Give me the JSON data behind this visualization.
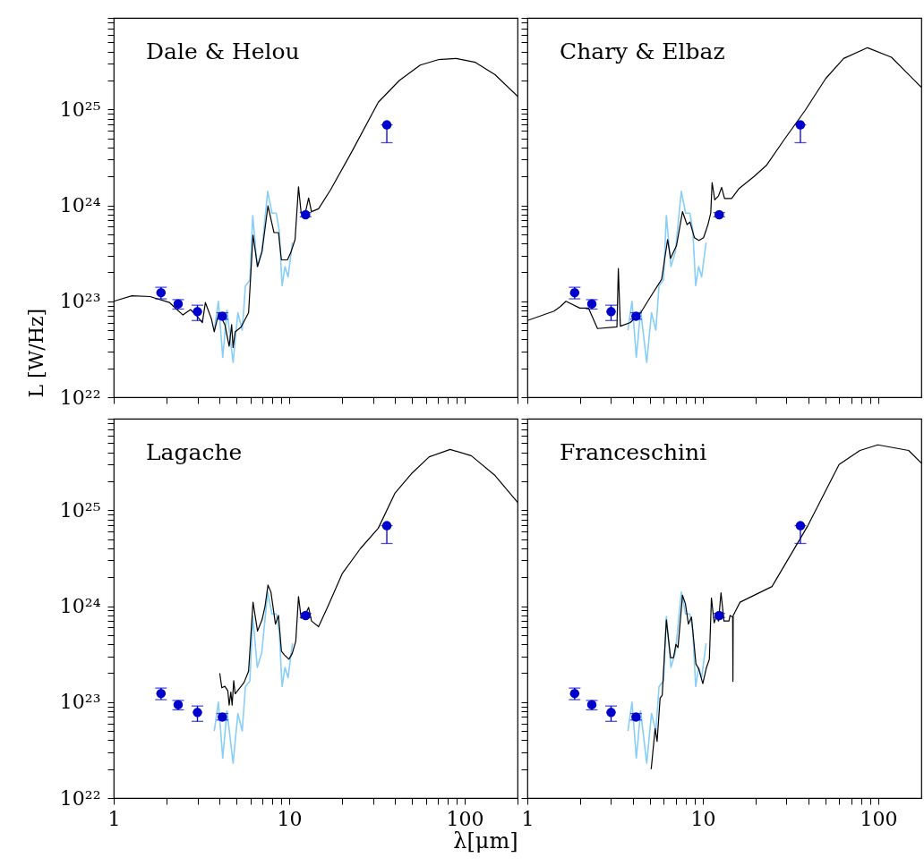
{
  "chart_data": [
    {
      "type": "line",
      "title": "Dale & Helou",
      "ylabel": "L [W/Hz]",
      "log": "xy",
      "tick_labels": "y",
      "xlim": [
        1,
        200
      ],
      "ylim": [
        1e+22,
        9e+25
      ],
      "xticks": [
        {
          "value": 1,
          "label": null
        },
        {
          "value": 2,
          "label": null
        },
        {
          "value": 3,
          "label": null
        },
        {
          "value": 4,
          "label": null
        },
        {
          "value": 5,
          "label": null
        },
        {
          "value": 6,
          "label": null
        },
        {
          "value": 7,
          "label": null
        },
        {
          "value": 8,
          "label": null
        },
        {
          "value": 9,
          "label": null
        },
        {
          "value": 10,
          "label": null
        },
        {
          "value": 20,
          "label": null
        },
        {
          "value": 30,
          "label": null
        },
        {
          "value": 40,
          "label": null
        },
        {
          "value": 50,
          "label": null
        },
        {
          "value": 60,
          "label": null
        },
        {
          "value": 70,
          "label": null
        },
        {
          "value": 80,
          "label": null
        },
        {
          "value": 90,
          "label": null
        },
        {
          "value": 100,
          "label": null
        },
        {
          "value": 200,
          "label": null
        }
      ],
      "yticks": [
        {
          "value": 1e+22,
          "label": "10²²"
        },
        {
          "value": 2e+22,
          "label": null
        },
        {
          "value": 3e+22,
          "label": null
        },
        {
          "value": 4e+22,
          "label": null
        },
        {
          "value": 5e+22,
          "label": null
        },
        {
          "value": 6e+22,
          "label": null
        },
        {
          "value": 7e+22,
          "label": null
        },
        {
          "value": 8e+22,
          "label": null
        },
        {
          "value": 9e+22,
          "label": null
        },
        {
          "value": 1e+23,
          "label": "10²³"
        },
        {
          "value": 2e+23,
          "label": null
        },
        {
          "value": 3e+23,
          "label": null
        },
        {
          "value": 4e+23,
          "label": null
        },
        {
          "value": 5e+23,
          "label": null
        },
        {
          "value": 6e+23,
          "label": null
        },
        {
          "value": 7e+23,
          "label": null
        },
        {
          "value": 8e+23,
          "label": null
        },
        {
          "value": 9e+23,
          "label": null
        },
        {
          "value": 1e+24,
          "label": "10²⁴"
        },
        {
          "value": 2e+24,
          "label": null
        },
        {
          "value": 3e+24,
          "label": null
        },
        {
          "value": 4e+24,
          "label": null
        },
        {
          "value": 5e+24,
          "label": null
        },
        {
          "value": 6e+24,
          "label": null
        },
        {
          "value": 7e+24,
          "label": null
        },
        {
          "value": 8e+24,
          "label": null
        },
        {
          "value": 9e+24,
          "label": null
        },
        {
          "value": 1e+25,
          "label": "10²⁵"
        },
        {
          "value": 2e+25,
          "label": null
        },
        {
          "value": 3e+25,
          "label": null
        },
        {
          "value": 4e+25,
          "label": null
        },
        {
          "value": 5e+25,
          "label": null
        },
        {
          "value": 6e+25,
          "label": null
        },
        {
          "value": 7e+25,
          "label": null
        },
        {
          "value": 8e+25,
          "label": null
        },
        {
          "value": 9e+25,
          "label": null
        }
      ],
      "series": [
        {
          "color": "#87cefa",
          "x": [
            3.74,
            3.95,
            4.18,
            4.42,
            4.79,
            5.1,
            5.4,
            5.63,
            5.97,
            6.2,
            6.58,
            6.98,
            7.54,
            7.98,
            8.44,
            8.77,
            9.11,
            9.47,
            9.85,
            10.44
          ],
          "values": [
            5e+22,
            1e+23,
            2.6e+22,
            8.1e+22,
            2.3e+22,
            7.6e+22,
            5e+22,
            1.45e+23,
            1.66e+23,
            7.8e+23,
            2.3e+23,
            3.3e+23,
            1.4e+24,
            8.3e+23,
            8.3e+23,
            5.5e+23,
            1.45e+23,
            2.3e+23,
            1.8e+23,
            4.1e+23
          ]
        },
        {
          "color": "#000000",
          "x": [
            1.0,
            1.27,
            1.61,
            2.08,
            2.48,
            2.74,
            2.96,
            3.2,
            3.33,
            3.6,
            3.74,
            3.97,
            4.3,
            4.55,
            4.7,
            4.79,
            4.92,
            5.32,
            5.87,
            6.22,
            6.6,
            7.0,
            7.57,
            8.19,
            8.69,
            9.03,
            9.77,
            10.2,
            10.8,
            11.3,
            11.7,
            12.4,
            12.9,
            13.4,
            14.7,
            17.2,
            22.7,
            32.2,
            42.4,
            55.8,
            70.6,
            89.3,
            115,
            149,
            200
          ],
          "values": [
            1e+23,
            1.14e+23,
            1.12e+23,
            9.7e+22,
            7.2e+22,
            8.2e+22,
            7.1e+22,
            6e+22,
            9.7e+22,
            6.6e+22,
            4.8e+22,
            7.6e+22,
            5.7e+22,
            3.4e+22,
            5.7e+22,
            3.3e+22,
            4.8e+22,
            5.4e+22,
            7.6e+22,
            4.9e+23,
            2.3e+23,
            3.3e+23,
            9.9e+23,
            5.2e+23,
            5.2e+23,
            2.7e+23,
            2.7e+23,
            3.2e+23,
            4.4e+23,
            1.56e+24,
            8.3e+23,
            8.6e+23,
            1.19e+24,
            8.6e+23,
            9.2e+23,
            1.45e+24,
            3.6e+24,
            1.19e+25,
            2e+25,
            2.9e+25,
            3.3e+25,
            3.4e+25,
            3.1e+25,
            2.3e+25,
            1.37e+25
          ]
        },
        {
          "type": "scatter",
          "color": "#0000cc",
          "marker": "circle",
          "x": [
            1.86,
            2.33,
            3.0,
            4.16,
            12.4,
            36
          ],
          "values": [
            1.23e+23,
            9.4e+22,
            7.8e+22,
            7e+22,
            8e+23,
            6.9e+24
          ],
          "errors": [
            [
              1.06e+23,
              1.4e+23
            ],
            [
              8.3e+22,
              1.04e+23
            ],
            [
              6.3e+22,
              9.1e+22
            ],
            [
              6.5e+22,
              7.6e+22
            ],
            [
              7.6e+23,
              8.4e+23
            ],
            [
              4.5e+24,
              6.9e+24
            ]
          ]
        }
      ]
    },
    {
      "type": "line",
      "title": "Chary & Elbaz",
      "log": "xy",
      "tick_labels": false,
      "xlim": [
        1,
        176
      ],
      "ylim": [
        1e+22,
        9e+25
      ],
      "xticks": [
        {
          "value": 1,
          "label": null
        },
        {
          "value": 2,
          "label": null
        },
        {
          "value": 3,
          "label": null
        },
        {
          "value": 4,
          "label": null
        },
        {
          "value": 5,
          "label": null
        },
        {
          "value": 6,
          "label": null
        },
        {
          "value": 7,
          "label": null
        },
        {
          "value": 8,
          "label": null
        },
        {
          "value": 9,
          "label": null
        },
        {
          "value": 10,
          "label": null
        },
        {
          "value": 20,
          "label": null
        },
        {
          "value": 30,
          "label": null
        },
        {
          "value": 40,
          "label": null
        },
        {
          "value": 50,
          "label": null
        },
        {
          "value": 60,
          "label": null
        },
        {
          "value": 70,
          "label": null
        },
        {
          "value": 80,
          "label": null
        },
        {
          "value": 90,
          "label": null
        },
        {
          "value": 100,
          "label": null
        }
      ],
      "yticks": [
        {
          "value": 1e+22,
          "label": null
        },
        {
          "value": 2e+22,
          "label": null
        },
        {
          "value": 3e+22,
          "label": null
        },
        {
          "value": 4e+22,
          "label": null
        },
        {
          "value": 5e+22,
          "label": null
        },
        {
          "value": 6e+22,
          "label": null
        },
        {
          "value": 7e+22,
          "label": null
        },
        {
          "value": 8e+22,
          "label": null
        },
        {
          "value": 9e+22,
          "label": null
        },
        {
          "value": 1e+23,
          "label": null
        },
        {
          "value": 2e+23,
          "label": null
        },
        {
          "value": 3e+23,
          "label": null
        },
        {
          "value": 4e+23,
          "label": null
        },
        {
          "value": 5e+23,
          "label": null
        },
        {
          "value": 6e+23,
          "label": null
        },
        {
          "value": 7e+23,
          "label": null
        },
        {
          "value": 8e+23,
          "label": null
        },
        {
          "value": 9e+23,
          "label": null
        },
        {
          "value": 1e+24,
          "label": null
        },
        {
          "value": 2e+24,
          "label": null
        },
        {
          "value": 3e+24,
          "label": null
        },
        {
          "value": 4e+24,
          "label": null
        },
        {
          "value": 5e+24,
          "label": null
        },
        {
          "value": 6e+24,
          "label": null
        },
        {
          "value": 7e+24,
          "label": null
        },
        {
          "value": 8e+24,
          "label": null
        },
        {
          "value": 9e+24,
          "label": null
        },
        {
          "value": 1e+25,
          "label": null
        },
        {
          "value": 2e+25,
          "label": null
        },
        {
          "value": 3e+25,
          "label": null
        },
        {
          "value": 4e+25,
          "label": null
        },
        {
          "value": 5e+25,
          "label": null
        },
        {
          "value": 6e+25,
          "label": null
        },
        {
          "value": 7e+25,
          "label": null
        },
        {
          "value": 8e+25,
          "label": null
        },
        {
          "value": 9e+25,
          "label": null
        }
      ],
      "series": [
        {
          "color": "#87cefa",
          "x": [
            3.74,
            3.95,
            4.18,
            4.42,
            4.79,
            5.1,
            5.4,
            5.63,
            5.97,
            6.2,
            6.58,
            6.98,
            7.54,
            7.98,
            8.44,
            8.77,
            9.11,
            9.47,
            9.85,
            10.44
          ],
          "values": [
            5e+22,
            1e+23,
            2.6e+22,
            8.1e+22,
            2.3e+22,
            7.6e+22,
            5e+22,
            1.45e+23,
            1.66e+23,
            7.8e+23,
            2.3e+23,
            3.3e+23,
            1.4e+24,
            8.3e+23,
            8.3e+23,
            5.5e+23,
            1.45e+23,
            2.3e+23,
            1.8e+23,
            4.1e+23
          ]
        },
        {
          "color": "#000000",
          "x": [
            1.0,
            1.42,
            1.54,
            1.66,
            1.99,
            2.23,
            2.51,
            3.24,
            3.3,
            3.39,
            3.86,
            4.43,
            4.98,
            5.83,
            6.3,
            6.55,
            7.08,
            7.66,
            8.13,
            8.45,
            8.96,
            9.5,
            10.1,
            10.7,
            11.1,
            11.3,
            11.7,
            12.3,
            12.8,
            13.3,
            14.6,
            16.1,
            19.6,
            23.0,
            29.0,
            38.2,
            50.2,
            63.5,
            86.9,
            119,
            176
          ],
          "values": [
            6.3e+22,
            7.9e+22,
            8.8e+22,
            1e+23,
            8.5e+22,
            8.5e+22,
            5.2e+22,
            5.4e+22,
            2.2e+23,
            5.5e+22,
            6e+22,
            7.6e+22,
            1.08e+23,
            1.7e+23,
            4.4e+23,
            2.8e+23,
            3.8e+23,
            8.6e+23,
            6.3e+23,
            6.7e+23,
            4.6e+23,
            4.3e+23,
            4.6e+23,
            6.3e+23,
            8.3e+23,
            1.73e+24,
            1.14e+24,
            1.26e+24,
            1.54e+24,
            1.18e+24,
            1.18e+24,
            1.5e+24,
            2e+24,
            2.6e+24,
            4.8e+24,
            9.7e+24,
            2.1e+25,
            3.4e+25,
            4.4e+25,
            3.5e+25,
            1.7e+25
          ]
        },
        {
          "type": "scatter",
          "color": "#0000cc",
          "marker": "circle",
          "x": [
            1.86,
            2.33,
            3.0,
            4.16,
            12.4,
            36
          ],
          "values": [
            1.23e+23,
            9.4e+22,
            7.8e+22,
            7e+22,
            8e+23,
            6.9e+24
          ],
          "errors": [
            [
              1.06e+23,
              1.4e+23
            ],
            [
              8.3e+22,
              1.04e+23
            ],
            [
              6.3e+22,
              9.1e+22
            ],
            [
              6.5e+22,
              7.6e+22
            ],
            [
              7.6e+23,
              8.4e+23
            ],
            [
              4.5e+24,
              6.9e+24
            ]
          ]
        }
      ]
    },
    {
      "type": "line",
      "title": "Lagache",
      "xlabel": "λ[μm]",
      "log": "xy",
      "xlim": [
        1,
        200
      ],
      "ylim": [
        1e+22,
        9e+25
      ],
      "xticks": [
        1,
        {
          "value": 2,
          "label": null
        },
        {
          "value": 3,
          "label": null
        },
        {
          "value": 4,
          "label": null
        },
        {
          "value": 5,
          "label": null
        },
        {
          "value": 6,
          "label": null
        },
        {
          "value": 7,
          "label": null
        },
        {
          "value": 8,
          "label": null
        },
        {
          "value": 9,
          "label": null
        },
        10,
        {
          "value": 20,
          "label": null
        },
        {
          "value": 30,
          "label": null
        },
        {
          "value": 40,
          "label": null
        },
        {
          "value": 50,
          "label": null
        },
        {
          "value": 60,
          "label": null
        },
        {
          "value": 70,
          "label": null
        },
        {
          "value": 80,
          "label": null
        },
        {
          "value": 90,
          "label": null
        },
        100,
        {
          "value": 200,
          "label": null
        }
      ],
      "yticks": [
        {
          "value": 1e+22,
          "label": "10²²"
        },
        {
          "value": 2e+22,
          "label": null
        },
        {
          "value": 3e+22,
          "label": null
        },
        {
          "value": 4e+22,
          "label": null
        },
        {
          "value": 5e+22,
          "label": null
        },
        {
          "value": 6e+22,
          "label": null
        },
        {
          "value": 7e+22,
          "label": null
        },
        {
          "value": 8e+22,
          "label": null
        },
        {
          "value": 9e+22,
          "label": null
        },
        {
          "value": 1e+23,
          "label": "10²³"
        },
        {
          "value": 2e+23,
          "label": null
        },
        {
          "value": 3e+23,
          "label": null
        },
        {
          "value": 4e+23,
          "label": null
        },
        {
          "value": 5e+23,
          "label": null
        },
        {
          "value": 6e+23,
          "label": null
        },
        {
          "value": 7e+23,
          "label": null
        },
        {
          "value": 8e+23,
          "label": null
        },
        {
          "value": 9e+23,
          "label": null
        },
        {
          "value": 1e+24,
          "label": "10²⁴"
        },
        {
          "value": 2e+24,
          "label": null
        },
        {
          "value": 3e+24,
          "label": null
        },
        {
          "value": 4e+24,
          "label": null
        },
        {
          "value": 5e+24,
          "label": null
        },
        {
          "value": 6e+24,
          "label": null
        },
        {
          "value": 7e+24,
          "label": null
        },
        {
          "value": 8e+24,
          "label": null
        },
        {
          "value": 9e+24,
          "label": null
        },
        {
          "value": 1e+25,
          "label": "10²⁵"
        },
        {
          "value": 2e+25,
          "label": null
        },
        {
          "value": 3e+25,
          "label": null
        },
        {
          "value": 4e+25,
          "label": null
        },
        {
          "value": 5e+25,
          "label": null
        },
        {
          "value": 6e+25,
          "label": null
        },
        {
          "value": 7e+25,
          "label": null
        },
        {
          "value": 8e+25,
          "label": null
        },
        {
          "value": 9e+25,
          "label": null
        }
      ],
      "series": [
        {
          "color": "#87cefa",
          "x": [
            3.74,
            3.95,
            4.18,
            4.42,
            4.79,
            5.1,
            5.4,
            5.63,
            5.97,
            6.2,
            6.58,
            6.98,
            7.54,
            7.98,
            8.44,
            8.77,
            9.11,
            9.47,
            9.85,
            10.44
          ],
          "values": [
            5e+22,
            1e+23,
            2.6e+22,
            8.1e+22,
            2.3e+22,
            7.6e+22,
            5e+22,
            1.45e+23,
            1.66e+23,
            7.8e+23,
            2.3e+23,
            3.3e+23,
            1.4e+24,
            8.3e+23,
            8.3e+23,
            5.5e+23,
            1.45e+23,
            2.3e+23,
            1.8e+23,
            4.1e+23
          ]
        },
        {
          "color": "#000000",
          "x": [
            4.02,
            4.13,
            4.3,
            4.47,
            4.55,
            4.65,
            4.73,
            4.83,
            4.92,
            5.53,
            5.87,
            6.22,
            6.6,
            7.0,
            7.28,
            7.57,
            7.87,
            8.35,
            8.69,
            9.03,
            9.4,
            9.96,
            10.4,
            10.9,
            11.3,
            11.7,
            12.4,
            12.9,
            13.4,
            14.7,
            16.6,
            20.1,
            25.5,
            32.2,
            40.0,
            49.7,
            62.8,
            82.6,
            109,
            149,
            200
          ],
          "values": [
            2e+23,
            1.41e+23,
            1.46e+23,
            1.31e+23,
            9.3e+22,
            1.27e+23,
            9.3e+22,
            1.67e+23,
            1.22e+23,
            1.6e+23,
            2.1e+23,
            1.1e+24,
            5.5e+23,
            7.2e+23,
            9.9e+23,
            1.66e+24,
            1.4e+24,
            6.5e+23,
            8e+23,
            3.4e+23,
            3.1e+23,
            2.8e+23,
            3.2e+23,
            4.3e+23,
            1.26e+24,
            7.5e+23,
            8.3e+23,
            9.7e+23,
            7e+23,
            6.1e+23,
            9.9e+23,
            2.2e+24,
            4e+24,
            6.5e+24,
            1.5e+25,
            2.4e+25,
            3.6e+25,
            4.3e+25,
            3.7e+25,
            2.3e+25,
            1.21e+25
          ]
        },
        {
          "type": "scatter",
          "color": "#0000cc",
          "marker": "circle",
          "x": [
            1.86,
            2.33,
            3.0,
            4.16,
            12.4,
            36
          ],
          "values": [
            1.23e+23,
            9.4e+22,
            7.8e+22,
            7e+22,
            8e+23,
            6.9e+24
          ],
          "errors": [
            [
              1.06e+23,
              1.4e+23
            ],
            [
              8.3e+22,
              1.04e+23
            ],
            [
              6.3e+22,
              9.1e+22
            ],
            [
              6.5e+22,
              7.6e+22
            ],
            [
              7.6e+23,
              8.4e+23
            ],
            [
              4.5e+24,
              6.9e+24
            ]
          ]
        }
      ]
    },
    {
      "type": "line",
      "title": "Franceschini",
      "log": "xy",
      "tick_labels": "x",
      "xlim": [
        1,
        176
      ],
      "ylim": [
        1e+22,
        9e+25
      ],
      "xticks": [
        1,
        {
          "value": 2,
          "label": null
        },
        {
          "value": 3,
          "label": null
        },
        {
          "value": 4,
          "label": null
        },
        {
          "value": 5,
          "label": null
        },
        {
          "value": 6,
          "label": null
        },
        {
          "value": 7,
          "label": null
        },
        {
          "value": 8,
          "label": null
        },
        {
          "value": 9,
          "label": null
        },
        10,
        {
          "value": 20,
          "label": null
        },
        {
          "value": 30,
          "label": null
        },
        {
          "value": 40,
          "label": null
        },
        {
          "value": 50,
          "label": null
        },
        {
          "value": 60,
          "label": null
        },
        {
          "value": 70,
          "label": null
        },
        {
          "value": 80,
          "label": null
        },
        {
          "value": 90,
          "label": null
        },
        100
      ],
      "yticks": [
        {
          "value": 1e+22,
          "label": null
        },
        {
          "value": 2e+22,
          "label": null
        },
        {
          "value": 3e+22,
          "label": null
        },
        {
          "value": 4e+22,
          "label": null
        },
        {
          "value": 5e+22,
          "label": null
        },
        {
          "value": 6e+22,
          "label": null
        },
        {
          "value": 7e+22,
          "label": null
        },
        {
          "value": 8e+22,
          "label": null
        },
        {
          "value": 9e+22,
          "label": null
        },
        {
          "value": 1e+23,
          "label": null
        },
        {
          "value": 2e+23,
          "label": null
        },
        {
          "value": 3e+23,
          "label": null
        },
        {
          "value": 4e+23,
          "label": null
        },
        {
          "value": 5e+23,
          "label": null
        },
        {
          "value": 6e+23,
          "label": null
        },
        {
          "value": 7e+23,
          "label": null
        },
        {
          "value": 8e+23,
          "label": null
        },
        {
          "value": 9e+23,
          "label": null
        },
        {
          "value": 1e+24,
          "label": null
        },
        {
          "value": 2e+24,
          "label": null
        },
        {
          "value": 3e+24,
          "label": null
        },
        {
          "value": 4e+24,
          "label": null
        },
        {
          "value": 5e+24,
          "label": null
        },
        {
          "value": 6e+24,
          "label": null
        },
        {
          "value": 7e+24,
          "label": null
        },
        {
          "value": 8e+24,
          "label": null
        },
        {
          "value": 9e+24,
          "label": null
        },
        {
          "value": 1e+25,
          "label": null
        },
        {
          "value": 2e+25,
          "label": null
        },
        {
          "value": 3e+25,
          "label": null
        },
        {
          "value": 4e+25,
          "label": null
        },
        {
          "value": 5e+25,
          "label": null
        },
        {
          "value": 6e+25,
          "label": null
        },
        {
          "value": 7e+25,
          "label": null
        },
        {
          "value": 8e+25,
          "label": null
        },
        {
          "value": 9e+25,
          "label": null
        }
      ],
      "series": [
        {
          "color": "#87cefa",
          "x": [
            3.74,
            3.95,
            4.18,
            4.42,
            4.79,
            5.1,
            5.4,
            5.63,
            5.97,
            6.2,
            6.58,
            6.98,
            7.54,
            7.98,
            8.44,
            8.77,
            9.11,
            9.47,
            9.85,
            10.44
          ],
          "values": [
            5e+22,
            1e+23,
            2.6e+22,
            8.1e+22,
            2.3e+22,
            7.6e+22,
            5e+22,
            1.45e+23,
            1.66e+23,
            7.8e+23,
            2.3e+23,
            3.3e+23,
            1.4e+24,
            8.3e+23,
            8.3e+23,
            5.5e+23,
            1.45e+23,
            2.3e+23,
            1.8e+23,
            4.1e+23
          ]
        },
        {
          "color": "#000000",
          "x": [
            5.08,
            5.35,
            5.49,
            5.71,
            5.87,
            6.2,
            6.55,
            6.81,
            7.03,
            7.22,
            7.66,
            7.96,
            8.28,
            8.62,
            9.14,
            9.5,
            10.0,
            10.5,
            10.9,
            11.2,
            11.6,
            11.9,
            12.3,
            12.7,
            13.2,
            14.1,
            14.3,
            14.8,
            14.85,
            14.9,
            15.5,
            16.3,
            24.8,
            39.7,
            59.8,
            78.7,
            99.5,
            149,
            176
          ],
          "values": [
            2e+22,
            5.3e+22,
            3.9e+22,
            1.1e+23,
            1.18e+23,
            7.2e+23,
            2.9e+23,
            2.9e+23,
            4e+23,
            3.7e+23,
            1.3e+24,
            1.06e+24,
            6.5e+23,
            7.7e+23,
            2.5e+23,
            2.2e+23,
            1.56e+23,
            2.3e+23,
            2.8e+23,
            1.22e+24,
            6.7e+23,
            7.7e+23,
            7e+23,
            1.38e+24,
            7e+23,
            7e+23,
            8e+23,
            7.7e+23,
            1.64e+23,
            8e+23,
            9.2e+23,
            1.1e+24,
            1.6e+24,
            6.9e+24,
            3e+25,
            4.2e+25,
            4.8e+25,
            4.2e+25,
            3.1e+25
          ]
        },
        {
          "type": "scatter",
          "color": "#0000cc",
          "marker": "circle",
          "x": [
            1.86,
            2.33,
            3.0,
            4.16,
            12.4,
            36
          ],
          "values": [
            1.23e+23,
            9.4e+22,
            7.8e+22,
            7e+22,
            8e+23,
            6.9e+24
          ],
          "errors": [
            [
              1.06e+23,
              1.4e+23
            ],
            [
              8.3e+22,
              1.04e+23
            ],
            [
              6.3e+22,
              9.1e+22
            ],
            [
              6.5e+22,
              7.6e+22
            ],
            [
              7.6e+23,
              8.4e+23
            ],
            [
              4.5e+24,
              6.9e+24
            ]
          ]
        }
      ]
    }
  ]
}
